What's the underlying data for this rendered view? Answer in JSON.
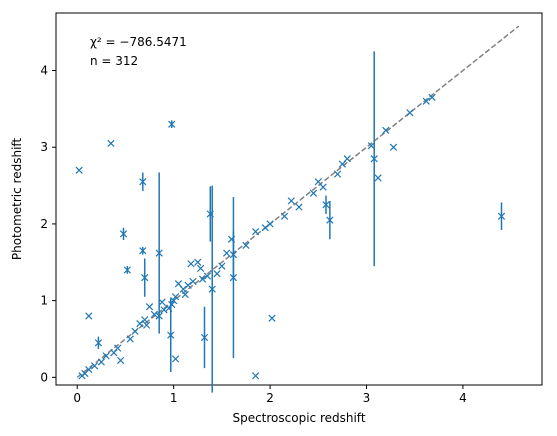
{
  "chart_data": {
    "type": "scatter",
    "xlabel": "Spectroscopic redshift",
    "ylabel": "Photometric redshift",
    "xlim": [
      -0.22,
      4.82
    ],
    "ylim": [
      -0.1,
      4.75
    ],
    "xticks": [
      0,
      1,
      2,
      3,
      4
    ],
    "yticks": [
      0,
      1,
      2,
      3,
      4
    ],
    "grid": false,
    "annotations": {
      "chi2": "χ² = −786.5471",
      "n": "n = 312"
    },
    "reference_line": {
      "style": "dashed",
      "color": "#808080",
      "from": [
        0,
        0
      ],
      "to": [
        4.58,
        4.58
      ]
    },
    "marker": "x",
    "color": "#1f77b4",
    "points": [
      {
        "x": 0.02,
        "y": 2.7
      },
      {
        "x": 0.35,
        "y": 3.05
      },
      {
        "x": 0.98,
        "y": 3.3,
        "err": 0.05
      },
      {
        "x": 0.68,
        "y": 2.55,
        "err": 0.12
      },
      {
        "x": 0.48,
        "y": 1.87,
        "err": 0.08
      },
      {
        "x": 0.52,
        "y": 1.4,
        "err": 0.05
      },
      {
        "x": 0.68,
        "y": 1.65,
        "err": 0.05
      },
      {
        "x": 0.7,
        "y": 1.3,
        "err": 0.25
      },
      {
        "x": 0.85,
        "y": 1.62,
        "err": 1.05
      },
      {
        "x": 0.97,
        "y": 0.55,
        "err": 0.48
      },
      {
        "x": 1.02,
        "y": 0.24
      },
      {
        "x": 1.32,
        "y": 0.52,
        "err": 0.4
      },
      {
        "x": 1.38,
        "y": 2.13,
        "err": 0.36
      },
      {
        "x": 1.4,
        "y": 1.15,
        "err": 1.35
      },
      {
        "x": 1.62,
        "y": 1.3,
        "err": 1.05
      },
      {
        "x": 1.62,
        "y": 1.6,
        "err": 0.3
      },
      {
        "x": 1.85,
        "y": 0.02
      },
      {
        "x": 2.02,
        "y": 0.77
      },
      {
        "x": 2.58,
        "y": 2.25,
        "err": 0.12
      },
      {
        "x": 2.62,
        "y": 2.05,
        "err": 0.25
      },
      {
        "x": 3.08,
        "y": 2.85,
        "err": 1.4
      },
      {
        "x": 3.12,
        "y": 2.6
      },
      {
        "x": 3.28,
        "y": 3.0
      },
      {
        "x": 3.45,
        "y": 3.45
      },
      {
        "x": 3.2,
        "y": 3.22
      },
      {
        "x": 3.62,
        "y": 3.6
      },
      {
        "x": 3.68,
        "y": 3.65
      },
      {
        "x": 4.4,
        "y": 2.1,
        "err": 0.18
      },
      {
        "x": 0.12,
        "y": 0.8
      },
      {
        "x": 0.22,
        "y": 0.45,
        "err": 0.08
      },
      {
        "x": 0.45,
        "y": 0.22
      },
      {
        "x": 1.25,
        "y": 1.5
      },
      {
        "x": 1.18,
        "y": 1.48
      },
      {
        "x": 1.6,
        "y": 1.8
      },
      {
        "x": 1.85,
        "y": 1.9
      },
      {
        "x": 2.3,
        "y": 2.22
      },
      {
        "x": 2.7,
        "y": 2.65
      },
      {
        "x": 2.75,
        "y": 2.78
      },
      {
        "x": 2.8,
        "y": 2.85
      },
      {
        "x": 3.05,
        "y": 3.02
      },
      {
        "x": 2.45,
        "y": 2.4
      },
      {
        "x": 2.5,
        "y": 2.55
      },
      {
        "x": 2.55,
        "y": 2.48
      },
      {
        "x": 2.15,
        "y": 2.1
      },
      {
        "x": 2.22,
        "y": 2.3
      },
      {
        "x": 2.0,
        "y": 2.0
      },
      {
        "x": 1.95,
        "y": 1.95
      },
      {
        "x": 1.75,
        "y": 1.72
      },
      {
        "x": 1.5,
        "y": 1.45
      },
      {
        "x": 1.45,
        "y": 1.35
      },
      {
        "x": 1.55,
        "y": 1.62
      },
      {
        "x": 1.35,
        "y": 1.32
      },
      {
        "x": 1.3,
        "y": 1.28
      },
      {
        "x": 1.1,
        "y": 1.15
      },
      {
        "x": 1.05,
        "y": 1.22
      },
      {
        "x": 0.95,
        "y": 0.9
      },
      {
        "x": 0.9,
        "y": 0.88
      },
      {
        "x": 0.8,
        "y": 0.82
      },
      {
        "x": 0.75,
        "y": 0.92
      },
      {
        "x": 0.65,
        "y": 0.7
      },
      {
        "x": 0.6,
        "y": 0.6
      },
      {
        "x": 0.55,
        "y": 0.5
      },
      {
        "x": 0.42,
        "y": 0.38
      },
      {
        "x": 0.38,
        "y": 0.32
      },
      {
        "x": 0.3,
        "y": 0.28
      },
      {
        "x": 0.25,
        "y": 0.2
      },
      {
        "x": 0.18,
        "y": 0.15
      },
      {
        "x": 0.12,
        "y": 0.1
      },
      {
        "x": 0.08,
        "y": 0.05
      },
      {
        "x": 0.05,
        "y": 0.02
      },
      {
        "x": 1.0,
        "y": 1.0
      },
      {
        "x": 1.02,
        "y": 1.05
      },
      {
        "x": 0.98,
        "y": 0.95
      },
      {
        "x": 0.85,
        "y": 0.8
      },
      {
        "x": 0.88,
        "y": 0.98
      },
      {
        "x": 0.72,
        "y": 0.68
      },
      {
        "x": 0.7,
        "y": 0.75
      },
      {
        "x": 1.12,
        "y": 1.08
      },
      {
        "x": 1.15,
        "y": 1.2
      },
      {
        "x": 1.2,
        "y": 1.25
      },
      {
        "x": 1.28,
        "y": 1.42
      }
    ]
  }
}
